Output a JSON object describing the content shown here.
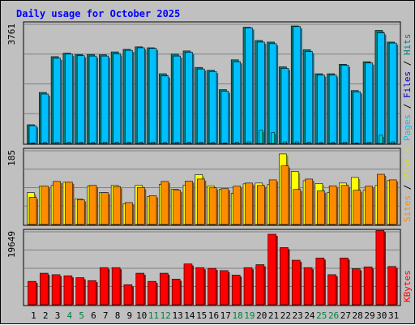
{
  "title": "Daily usage for October 2025",
  "colors": {
    "background": "#c0c0c0",
    "title_text": "#0000ff",
    "weekday_text": "#000000",
    "weekend_text": "#008040",
    "hits": "#008080",
    "files": "#00bfff",
    "pages": "#00cfcf",
    "visits": "#ffff00",
    "sites": "#ff8c00",
    "kbytes": "#ff0000",
    "hits_label": "#008080",
    "files_label": "#0000c0",
    "pages_label": "#00bfff",
    "visits_label": "#e0e000",
    "sites_label": "#ff8c00",
    "kbytes_label": "#ff0000",
    "separator": "#000000"
  },
  "chart_data": [
    {
      "type": "bar",
      "panel": "hits-files-pages",
      "title": "Daily usage for October 2025",
      "categories": [
        "1",
        "2",
        "3",
        "4",
        "5",
        "6",
        "7",
        "8",
        "9",
        "10",
        "11",
        "12",
        "13",
        "14",
        "15",
        "16",
        "17",
        "18",
        "19",
        "20",
        "21",
        "22",
        "23",
        "24",
        "25",
        "26",
        "27",
        "28",
        "29",
        "30",
        "31"
      ],
      "weekend_days": [
        "4",
        "5",
        "11",
        "12",
        "18",
        "19",
        "25",
        "26"
      ],
      "ymax_label": "3761",
      "ylim": [
        0,
        3761
      ],
      "grid": true,
      "legend_labels": {
        "pages": "Pages",
        "files": "Files",
        "hits": "Hits",
        "separator": " / "
      },
      "series": [
        {
          "name": "Hits",
          "values": [
            590,
            1610,
            2740,
            2850,
            2810,
            2810,
            2800,
            2890,
            2970,
            3050,
            3020,
            2200,
            2820,
            2920,
            2400,
            2310,
            1700,
            2640,
            3670,
            3250,
            3200,
            2420,
            3710,
            2960,
            2200,
            2200,
            2500,
            1670,
            2580,
            3570,
            3200
          ]
        },
        {
          "name": "Files",
          "values": [
            560,
            1560,
            2690,
            2820,
            2770,
            2760,
            2760,
            2830,
            2940,
            3020,
            3000,
            2130,
            2760,
            2880,
            2350,
            2270,
            1650,
            2580,
            3650,
            3200,
            3150,
            2370,
            3690,
            2900,
            2160,
            2160,
            2470,
            1630,
            2540,
            3490,
            3170
          ]
        },
        {
          "name": "Pages",
          "values": [
            20,
            30,
            40,
            40,
            40,
            30,
            40,
            40,
            40,
            40,
            40,
            30,
            40,
            40,
            40,
            30,
            20,
            40,
            50,
            420,
            340,
            50,
            50,
            40,
            30,
            30,
            40,
            20,
            40,
            260,
            50
          ]
        }
      ]
    },
    {
      "type": "bar",
      "panel": "visits-sites",
      "categories": [
        "1",
        "2",
        "3",
        "4",
        "5",
        "6",
        "7",
        "8",
        "9",
        "10",
        "11",
        "12",
        "13",
        "14",
        "15",
        "16",
        "17",
        "18",
        "19",
        "20",
        "21",
        "22",
        "23",
        "24",
        "25",
        "26",
        "27",
        "28",
        "29",
        "30",
        "31"
      ],
      "ymax_label": "185",
      "ylim": [
        0,
        185
      ],
      "grid": true,
      "legend_labels": {
        "sites": "Sites",
        "visits": "Visits",
        "separator": " / "
      },
      "series": [
        {
          "name": "Visits",
          "values": [
            80,
            96,
            98,
            106,
            64,
            96,
            80,
            98,
            52,
            98,
            70,
            101,
            88,
            99,
            125,
            96,
            88,
            78,
            102,
            104,
            100,
            177,
            133,
            110,
            103,
            80,
            104,
            118,
            86,
            98,
            110
          ]
        },
        {
          "name": "Sites",
          "values": [
            68,
            96,
            108,
            106,
            62,
            98,
            80,
            95,
            55,
            93,
            72,
            108,
            86,
            109,
            114,
            92,
            90,
            96,
            104,
            98,
            112,
            147,
            88,
            114,
            84,
            97,
            98,
            86,
            96,
            126,
            112
          ]
        }
      ]
    },
    {
      "type": "bar",
      "panel": "kbytes",
      "categories": [
        "1",
        "2",
        "3",
        "4",
        "5",
        "6",
        "7",
        "8",
        "9",
        "10",
        "11",
        "12",
        "13",
        "14",
        "15",
        "16",
        "17",
        "18",
        "19",
        "20",
        "21",
        "22",
        "23",
        "24",
        "25",
        "26",
        "27",
        "28",
        "29",
        "30",
        "31"
      ],
      "ymax_label": "19649",
      "ylim": [
        0,
        19649
      ],
      "grid": true,
      "legend_labels": {
        "kbytes": "KBytes"
      },
      "series": [
        {
          "name": "KBytes",
          "values": [
            6300,
            8500,
            8100,
            7800,
            7300,
            6500,
            10000,
            10000,
            5400,
            8500,
            6300,
            8500,
            6900,
            11000,
            10000,
            9800,
            9200,
            8000,
            10000,
            10800,
            19000,
            15400,
            12000,
            10000,
            12600,
            8100,
            12600,
            9700,
            10200,
            20000,
            10300
          ]
        }
      ]
    }
  ]
}
